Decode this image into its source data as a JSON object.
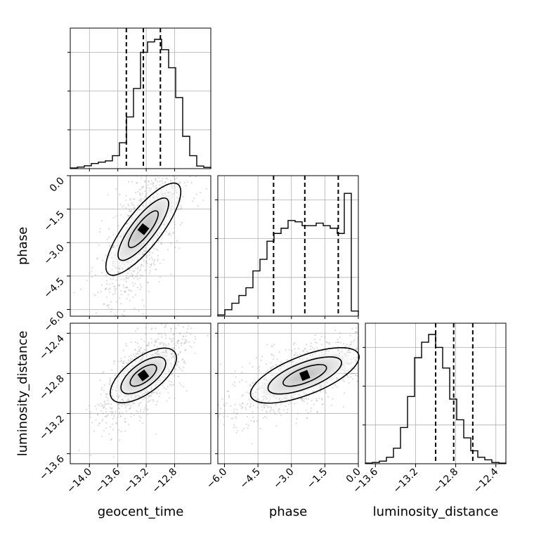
{
  "chart_data": {
    "type": "corner",
    "parameters": [
      "geocent_time",
      "phase",
      "luminosity_distance"
    ],
    "axis_ticks": {
      "geocent_time": [
        "−14.0",
        "−13.6",
        "−13.2",
        "−12.8"
      ],
      "phase": [
        "−6.0",
        "−4.5",
        "−3.0",
        "−1.5",
        "0.0"
      ],
      "luminosity_distance": [
        "−13.6",
        "−13.2",
        "−12.8",
        "−12.4"
      ]
    },
    "tick_values": {
      "geocent_time": [
        -14.0,
        -13.6,
        -13.2,
        -12.8
      ],
      "phase": [
        -6.0,
        -4.5,
        -3.0,
        -1.5,
        0.0
      ],
      "luminosity_distance": [
        -13.6,
        -13.2,
        -12.8,
        -12.4
      ]
    },
    "ranges": {
      "geocent_time": [
        -14.27,
        -12.29
      ],
      "phase": [
        -6.3,
        0.0
      ],
      "luminosity_distance": [
        -13.7,
        -12.3
      ]
    },
    "quantiles": {
      "geocent_time": [
        -13.48,
        -13.24,
        -13.0
      ],
      "phase": [
        -3.8,
        -2.4,
        -0.9
      ],
      "luminosity_distance": [
        -13.0,
        -12.82,
        -12.63
      ]
    },
    "histograms": {
      "geocent_time": [
        0.005,
        0.012,
        0.022,
        0.04,
        0.05,
        0.06,
        0.1,
        0.2,
        0.4,
        0.62,
        0.9,
        0.98,
        1.0,
        0.92,
        0.78,
        0.55,
        0.25,
        0.1,
        0.02,
        0.01
      ],
      "phase": [
        0.01,
        0.05,
        0.1,
        0.16,
        0.22,
        0.35,
        0.44,
        0.58,
        0.64,
        0.68,
        0.74,
        0.73,
        0.7,
        0.7,
        0.72,
        0.7,
        0.68,
        0.64,
        0.95,
        0.04
      ],
      "luminosity_distance": [
        0.005,
        0.01,
        0.02,
        0.05,
        0.12,
        0.28,
        0.52,
        0.82,
        0.94,
        1.0,
        0.9,
        0.74,
        0.5,
        0.34,
        0.2,
        0.1,
        0.05,
        0.03,
        0.01,
        0.005
      ]
    },
    "scatter_color": "#9a9a9a",
    "line_color": "#000000",
    "grid": true
  }
}
